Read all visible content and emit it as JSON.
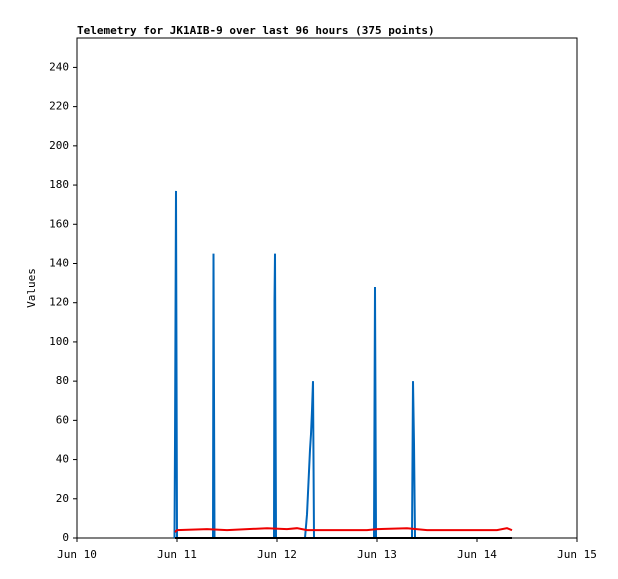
{
  "chart_data": {
    "type": "line",
    "title": "Telemetry for JK1AIB-9 over last 96 hours (375 points)",
    "ylabel": "Values",
    "xlim": [
      10,
      15
    ],
    "xticks": [
      {
        "value": 10,
        "label": "Jun 10"
      },
      {
        "value": 11,
        "label": "Jun 11"
      },
      {
        "value": 12,
        "label": "Jun 12"
      },
      {
        "value": 13,
        "label": "Jun 13"
      },
      {
        "value": 14,
        "label": "Jun 14"
      },
      {
        "value": 15,
        "label": "Jun 15"
      }
    ],
    "ylim": [
      0,
      255
    ],
    "yticks": [
      0,
      20,
      40,
      60,
      80,
      100,
      120,
      140,
      160,
      180,
      200,
      220,
      240
    ],
    "series": [
      {
        "color": "#0066bb",
        "x": [
          10.975,
          10.98,
          10.99,
          11.0,
          11.36,
          11.365,
          11.37,
          11.375,
          11.97,
          11.975,
          11.98,
          11.99,
          12.28,
          12.3,
          12.33,
          12.34,
          12.35,
          12.36,
          12.37,
          12.97,
          12.975,
          12.98,
          12.99,
          13.35,
          13.36,
          13.37,
          13.38
        ],
        "values": [
          0,
          48,
          177,
          0,
          0,
          145,
          72,
          0,
          0,
          121,
          145,
          0,
          0,
          12,
          45,
          53,
          65,
          80,
          0,
          0,
          65,
          128,
          0,
          0,
          80,
          48,
          0
        ]
      },
      {
        "color": "#ee0000",
        "x": [
          10.98,
          11.0,
          11.3,
          11.5,
          11.9,
          12.1,
          12.2,
          12.3,
          12.9,
          13.0,
          13.3,
          13.5,
          14.2,
          14.3,
          14.35
        ],
        "values": [
          3,
          4,
          4.5,
          4,
          5,
          4.5,
          5,
          4,
          4,
          4.5,
          5,
          4,
          4,
          5,
          4
        ]
      },
      {
        "color": "#000000",
        "x": [
          10.98,
          14.35
        ],
        "values": [
          0,
          0
        ]
      }
    ]
  }
}
